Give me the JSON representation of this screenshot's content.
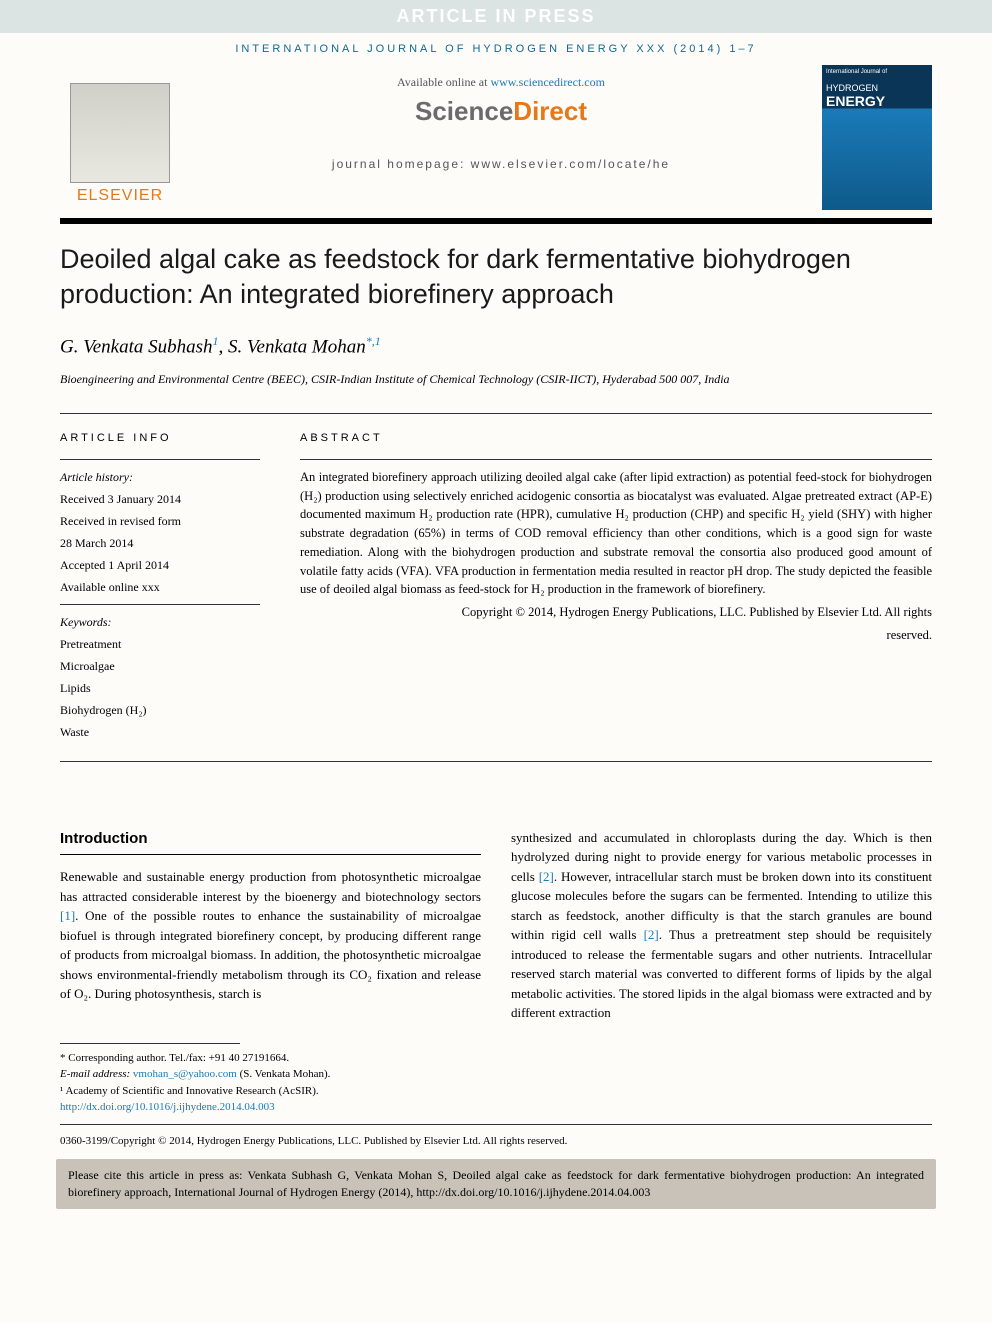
{
  "banner": "ARTICLE IN PRESS",
  "journal_ref": "INTERNATIONAL JOURNAL OF HYDROGEN ENERGY XXX (2014) 1–7",
  "header": {
    "elsevier": "ELSEVIER",
    "available_prefix": "Available online at ",
    "available_link": "www.sciencedirect.com",
    "sd_science": "Science",
    "sd_direct": "Direct",
    "homepage_prefix": "journal homepage: ",
    "homepage_url": "www.elsevier.com/locate/he",
    "cover_top": "International Journal of",
    "cover_t1": "HYDROGEN",
    "cover_t2": "ENERGY"
  },
  "title": "Deoiled algal cake as feedstock for dark fermentative biohydrogen production: An integrated biorefinery approach",
  "authors": {
    "a1": "G. Venkata Subhash",
    "a1_sup": "1",
    "a2": "S. Venkata Mohan",
    "a2_sup": "*,1"
  },
  "affiliation": "Bioengineering and Environmental Centre (BEEC), CSIR-Indian Institute of Chemical Technology (CSIR-IICT), Hyderabad 500 007, India",
  "info": {
    "label": "ARTICLE INFO",
    "history_label": "Article history:",
    "received": "Received 3 January 2014",
    "revised1": "Received in revised form",
    "revised2": "28 March 2014",
    "accepted": "Accepted 1 April 2014",
    "online": "Available online xxx",
    "keywords_label": "Keywords:",
    "kw1": "Pretreatment",
    "kw2": "Microalgae",
    "kw3": "Lipids",
    "kw4": "Biohydrogen (H₂)",
    "kw5": "Waste"
  },
  "abstract": {
    "label": "ABSTRACT",
    "text": "An integrated biorefinery approach utilizing deoiled algal cake (after lipid extraction) as potential feed-stock for biohydrogen (H₂) production using selectively enriched acidogenic consortia as biocatalyst was evaluated. Algae pretreated extract (AP-E) documented maximum H₂ production rate (HPR), cumulative H₂ production (CHP) and specific H₂ yield (SHY) with higher substrate degradation (65%) in terms of COD removal efficiency than other conditions, which is a good sign for waste remediation. Along with the biohydrogen production and substrate removal the consortia also produced good amount of volatile fatty acids (VFA). VFA production in fermentation media resulted in reactor pH drop. The study depicted the feasible use of deoiled algal biomass as feed-stock for H₂ production in the framework of biorefinery.",
    "copyright1": "Copyright © 2014, Hydrogen Energy Publications, LLC. Published by Elsevier Ltd. All rights",
    "copyright2": "reserved."
  },
  "intro": {
    "heading": "Introduction",
    "col1_p1a": "Renewable and sustainable energy production from photosynthetic microalgae has attracted considerable interest by the bioenergy and biotechnology sectors ",
    "ref1": "[1]",
    "col1_p1b": ". One of the possible routes to enhance the sustainability of microalgae biofuel is through integrated biorefinery concept, by producing different range of products from microalgal biomass. In addition, the photosynthetic microalgae shows environmental-friendly metabolism through its CO₂ fixation and release of O₂. During photosynthesis, starch is",
    "col2_p1a": "synthesized and accumulated in chloroplasts during the day. Which is then hydrolyzed during night to provide energy for various metabolic processes in cells ",
    "ref2a": "[2]",
    "col2_p1b": ". However, intracellular starch must be broken down into its constituent glucose molecules before the sugars can be fermented. Intending to utilize this starch as feedstock, another difficulty is that the starch granules are bound within rigid cell walls ",
    "ref2b": "[2]",
    "col2_p1c": ". Thus a pretreatment step should be requisitely introduced to release the fermentable sugars and other nutrients. Intracellular reserved starch material was converted to different forms of lipids by the algal metabolic activities. The stored lipids in the algal biomass were extracted and by different extraction"
  },
  "footer": {
    "corr": "* Corresponding author. Tel./fax: +91 40 27191664.",
    "email_label": "E-mail address: ",
    "email": "vmohan_s@yahoo.com",
    "email_suffix": " (S. Venkata Mohan).",
    "note1": "¹ Academy of Scientific and Innovative Research (AcSIR).",
    "doi": "http://dx.doi.org/10.1016/j.ijhydene.2014.04.003",
    "issn": "0360-3199/Copyright © 2014, Hydrogen Energy Publications, LLC. Published by Elsevier Ltd. All rights reserved."
  },
  "citebox": "Please cite this article in press as: Venkata Subhash G, Venkata Mohan S, Deoiled algal cake as feedstock for dark fermentative biohydrogen production: An integrated biorefinery approach, International Journal of Hydrogen Energy (2014), http://dx.doi.org/10.1016/j.ijhydene.2014.04.003"
}
